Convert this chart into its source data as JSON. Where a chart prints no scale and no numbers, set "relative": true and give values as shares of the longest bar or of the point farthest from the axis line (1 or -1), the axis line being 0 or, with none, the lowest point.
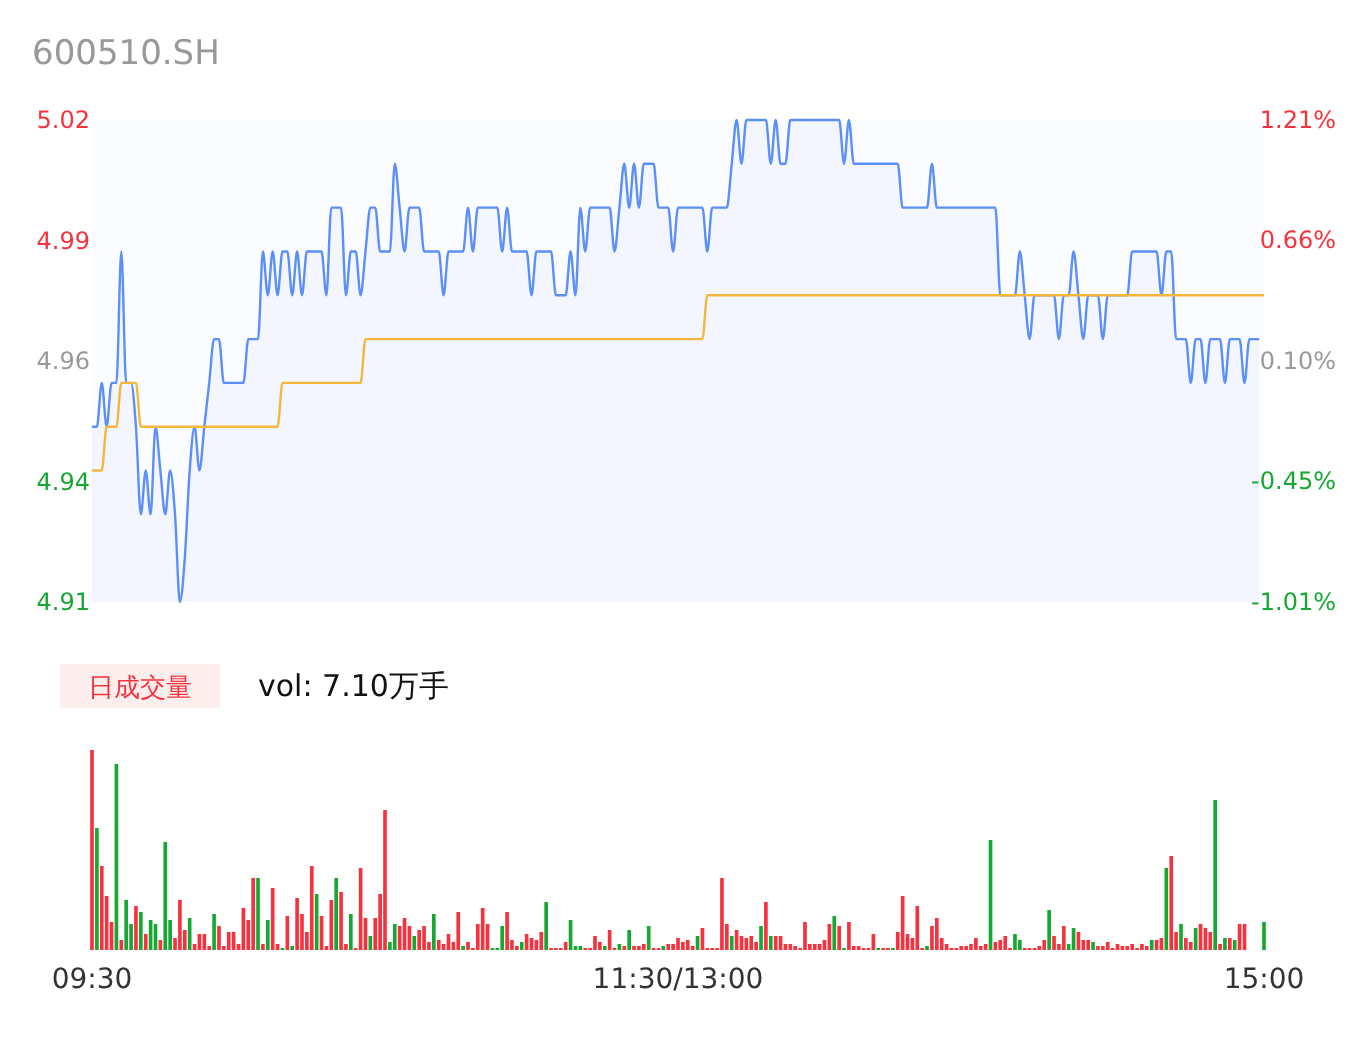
{
  "chart_data": [
    {
      "type": "line",
      "title": "600510.SH",
      "categories": [
        null,
        null,
        null,
        null,
        null,
        null,
        null,
        null,
        null,
        null,
        null,
        null,
        null,
        null,
        null,
        null,
        null,
        null,
        null,
        null,
        null,
        null,
        null,
        null,
        null,
        null,
        null,
        null,
        null,
        null,
        null,
        null,
        null,
        null,
        null,
        null,
        null,
        null,
        null,
        null,
        null,
        null,
        null,
        null,
        null,
        null,
        null,
        null,
        null,
        null,
        null,
        null,
        null,
        null,
        null,
        null,
        null,
        null,
        null,
        null,
        null,
        null,
        null,
        null,
        null,
        null,
        null,
        null,
        null,
        null,
        null,
        null,
        null,
        null,
        null,
        null,
        null,
        null,
        null,
        null,
        null,
        null,
        null,
        null,
        null,
        null,
        null,
        null,
        null,
        null,
        null,
        null,
        null,
        null,
        null,
        null,
        null,
        null,
        null,
        null,
        null,
        null,
        null,
        null,
        null,
        null,
        null,
        null,
        null,
        null,
        null,
        null,
        null,
        null,
        null,
        null,
        null,
        null,
        null,
        null,
        null,
        null,
        null,
        null,
        null,
        null,
        null,
        null,
        null,
        null,
        null,
        null,
        null,
        null,
        null,
        null,
        null,
        null,
        null,
        null,
        null,
        null,
        null,
        null,
        null,
        null,
        null,
        null,
        null,
        null,
        null,
        null,
        null,
        null,
        null,
        null,
        null,
        null,
        null,
        null,
        null,
        null,
        null,
        null,
        null,
        null,
        null,
        null,
        null,
        null,
        null,
        null,
        null,
        null,
        null,
        null,
        null,
        null,
        null,
        null,
        null,
        null,
        null,
        null,
        null,
        null,
        null,
        null,
        null,
        null,
        null,
        null,
        null,
        null,
        null,
        null,
        null,
        null,
        null,
        null,
        null,
        null,
        null,
        null,
        null,
        null,
        null,
        null,
        null,
        null,
        null,
        null,
        null,
        null,
        null,
        null,
        null,
        null,
        null,
        null,
        null,
        null,
        null,
        null,
        null,
        null,
        null,
        null,
        null,
        null,
        null,
        null,
        null,
        null,
        null,
        null,
        null,
        null,
        null,
        null,
        null
      ],
      "ylim": [
        4.91,
        5.02
      ],
      "yticks": [
        4.91,
        {
          "value": 4.9375,
          "label": "4.94"
        },
        {
          "value": 4.965,
          "label": "4.96"
        },
        {
          "value": 4.9925,
          "label": "4.99"
        },
        5.02
      ],
      "y2lim": [
        -1.01,
        1.21
      ],
      "y2ticks": [
        {
          "value": -1.01,
          "label": "-1.01%"
        },
        {
          "value": -0.45,
          "label": "-0.45%"
        },
        {
          "value": 0.1,
          "label": "0.10%"
        },
        {
          "value": 0.66,
          "label": "0.66%"
        },
        {
          "value": 1.21,
          "label": "1.21%"
        }
      ],
      "tick_labels": "y",
      "series": [
        {
          "type": "area",
          "color": "#5b8ff9",
          "values": [
            4.95,
            4.95,
            4.96,
            4.95,
            4.96,
            4.96,
            4.99,
            4.96,
            4.96,
            4.95,
            4.93,
            4.94,
            4.93,
            4.95,
            4.94,
            4.93,
            4.94,
            4.93,
            4.91,
            4.92,
            4.94,
            4.95,
            4.94,
            4.95,
            4.96,
            4.97,
            4.97,
            4.96,
            4.96,
            4.96,
            4.96,
            4.96,
            4.97,
            4.97,
            4.97,
            4.99,
            4.98,
            4.99,
            4.98,
            4.99,
            4.99,
            4.98,
            4.99,
            4.98,
            4.99,
            4.99,
            4.99,
            4.99,
            4.98,
            5.0,
            5.0,
            5.0,
            4.98,
            4.99,
            4.99,
            4.98,
            4.99,
            5.0,
            5.0,
            4.99,
            4.99,
            4.99,
            5.01,
            5.0,
            4.99,
            5.0,
            5.0,
            5.0,
            4.99,
            4.99,
            4.99,
            4.99,
            4.98,
            4.99,
            4.99,
            4.99,
            4.99,
            5.0,
            4.99,
            5.0,
            5.0,
            5.0,
            5.0,
            5.0,
            4.99,
            5.0,
            4.99,
            4.99,
            4.99,
            4.99,
            4.98,
            4.99,
            4.99,
            4.99,
            4.99,
            4.98,
            4.98,
            4.98,
            4.99,
            4.98,
            5.0,
            4.99,
            5.0,
            5.0,
            5.0,
            5.0,
            5.0,
            4.99,
            5.0,
            5.01,
            5.0,
            5.01,
            5.0,
            5.01,
            5.01,
            5.01,
            5.0,
            5.0,
            5.0,
            4.99,
            5.0,
            5.0,
            5.0,
            5.0,
            5.0,
            5.0,
            4.99,
            5.0,
            5.0,
            5.0,
            5.0,
            5.01,
            5.02,
            5.01,
            5.02,
            5.02,
            5.02,
            5.02,
            5.02,
            5.01,
            5.02,
            5.01,
            5.01,
            5.02,
            5.02,
            5.02,
            5.02,
            5.02,
            5.02,
            5.02,
            5.02,
            5.02,
            5.02,
            5.02,
            5.01,
            5.02,
            5.01,
            5.01,
            5.01,
            5.01,
            5.01,
            5.01,
            5.01,
            5.01,
            5.01,
            5.01,
            5.0,
            5.0,
            5.0,
            5.0,
            5.0,
            5.0,
            5.01,
            5.0,
            5.0,
            5.0,
            5.0,
            5.0,
            5.0,
            5.0,
            5.0,
            5.0,
            5.0,
            5.0,
            5.0,
            5.0,
            4.98,
            4.98,
            4.98,
            4.98,
            4.99,
            4.98,
            4.97,
            4.98,
            4.98,
            4.98,
            4.98,
            4.98,
            4.97,
            4.98,
            4.98,
            4.99,
            4.98,
            4.97,
            4.98,
            4.98,
            4.98,
            4.97,
            4.98,
            4.98,
            4.98,
            4.98,
            4.98,
            4.99,
            4.99,
            4.99,
            4.99,
            4.99,
            4.99,
            4.98,
            4.99,
            4.99,
            4.97,
            4.97,
            4.97,
            4.96,
            4.97,
            4.97,
            4.96,
            4.97,
            4.97,
            4.97,
            4.96,
            4.97,
            4.97,
            4.97,
            4.96,
            4.97,
            4.97,
            4.97,
            null
          ]
        },
        {
          "type": "line",
          "color": "#f5b73b",
          "values": [
            4.94,
            4.94,
            4.94,
            4.95,
            4.95,
            4.95,
            4.96,
            4.96,
            4.96,
            4.96,
            4.95,
            4.95,
            4.95,
            4.95,
            4.95,
            4.95,
            4.95,
            4.95,
            4.95,
            4.95,
            4.95,
            4.95,
            4.95,
            4.95,
            4.95,
            4.95,
            4.95,
            4.95,
            4.95,
            4.95,
            4.95,
            4.95,
            4.95,
            4.95,
            4.95,
            4.95,
            4.95,
            4.95,
            4.95,
            4.96,
            4.96,
            4.96,
            4.96,
            4.96,
            4.96,
            4.96,
            4.96,
            4.96,
            4.96,
            4.96,
            4.96,
            4.96,
            4.96,
            4.96,
            4.96,
            4.96,
            4.97,
            4.97,
            4.97,
            4.97,
            4.97,
            4.97,
            4.97,
            4.97,
            4.97,
            4.97,
            4.97,
            4.97,
            4.97,
            4.97,
            4.97,
            4.97,
            4.97,
            4.97,
            4.97,
            4.97,
            4.97,
            4.97,
            4.97,
            4.97,
            4.97,
            4.97,
            4.97,
            4.97,
            4.97,
            4.97,
            4.97,
            4.97,
            4.97,
            4.97,
            4.97,
            4.97,
            4.97,
            4.97,
            4.97,
            4.97,
            4.97,
            4.97,
            4.97,
            4.97,
            4.97,
            4.97,
            4.97,
            4.97,
            4.97,
            4.97,
            4.97,
            4.97,
            4.97,
            4.97,
            4.97,
            4.97,
            4.97,
            4.97,
            4.97,
            4.97,
            4.97,
            4.97,
            4.97,
            4.97,
            4.97,
            4.97,
            4.97,
            4.97,
            4.97,
            4.97,
            4.98,
            4.98,
            4.98,
            4.98,
            4.98,
            4.98,
            4.98,
            4.98,
            4.98,
            4.98,
            4.98,
            4.98,
            4.98,
            4.98,
            4.98,
            4.98,
            4.98,
            4.98,
            4.98,
            4.98,
            4.98,
            4.98,
            4.98,
            4.98,
            4.98,
            4.98,
            4.98,
            4.98,
            4.98,
            4.98,
            4.98,
            4.98,
            4.98,
            4.98,
            4.98,
            4.98,
            4.98,
            4.98,
            4.98,
            4.98,
            4.98,
            4.98,
            4.98,
            4.98,
            4.98,
            4.98,
            4.98,
            4.98,
            4.98,
            4.98,
            4.98,
            4.98,
            4.98,
            4.98,
            4.98,
            4.98,
            4.98,
            4.98,
            4.98,
            4.98,
            4.98,
            4.98,
            4.98,
            4.98,
            4.98,
            4.98,
            4.98,
            4.98,
            4.98,
            4.98,
            4.98,
            4.98,
            4.98,
            4.98,
            4.98,
            4.98,
            4.98,
            4.98,
            4.98,
            4.98,
            4.98,
            4.98,
            4.98,
            4.98,
            4.98,
            4.98,
            4.98,
            4.98,
            4.98,
            4.98,
            4.98,
            4.98,
            4.98,
            4.98,
            4.98,
            4.98,
            4.98,
            4.98,
            4.98,
            4.98,
            4.98,
            4.98,
            4.98,
            4.98,
            4.98,
            4.98,
            4.98,
            4.98,
            4.98,
            4.98,
            4.98,
            4.98,
            4.98,
            4.98,
            4.98
          ]
        }
      ]
    },
    {
      "type": "bar",
      "title": "日成交量",
      "subtitle": "vol: 7.10万手",
      "relative": true,
      "tick_labels": "x",
      "categories": [
        "09:30",
        null,
        null,
        null,
        null,
        null,
        null,
        null,
        null,
        null,
        null,
        null,
        null,
        null,
        null,
        null,
        null,
        null,
        null,
        null,
        null,
        null,
        null,
        null,
        null,
        null,
        null,
        null,
        null,
        null,
        null,
        null,
        null,
        null,
        null,
        null,
        null,
        null,
        null,
        null,
        null,
        null,
        null,
        null,
        null,
        null,
        null,
        null,
        null,
        null,
        null,
        null,
        null,
        null,
        null,
        null,
        null,
        null,
        null,
        null,
        null,
        null,
        null,
        null,
        null,
        null,
        null,
        null,
        null,
        null,
        null,
        null,
        null,
        null,
        null,
        null,
        null,
        null,
        null,
        null,
        null,
        null,
        null,
        null,
        null,
        null,
        null,
        null,
        null,
        null,
        null,
        null,
        null,
        null,
        null,
        null,
        null,
        null,
        null,
        null,
        null,
        null,
        null,
        null,
        null,
        null,
        null,
        null,
        null,
        null,
        null,
        null,
        null,
        null,
        null,
        null,
        null,
        null,
        null,
        null,
        "11:30/13:00",
        null,
        null,
        null,
        null,
        null,
        null,
        null,
        null,
        null,
        null,
        null,
        null,
        null,
        null,
        null,
        null,
        null,
        null,
        null,
        null,
        null,
        null,
        null,
        null,
        null,
        null,
        null,
        null,
        null,
        null,
        null,
        null,
        null,
        null,
        null,
        null,
        null,
        null,
        null,
        null,
        null,
        null,
        null,
        null,
        null,
        null,
        null,
        null,
        null,
        null,
        null,
        null,
        null,
        null,
        null,
        null,
        null,
        null,
        null,
        null,
        null,
        null,
        null,
        null,
        null,
        null,
        null,
        null,
        null,
        null,
        null,
        null,
        null,
        null,
        null,
        null,
        null,
        null,
        null,
        null,
        null,
        null,
        null,
        null,
        null,
        null,
        null,
        null,
        null,
        null,
        null,
        null,
        null,
        null,
        null,
        null,
        null,
        null,
        null,
        null,
        null,
        null,
        null,
        null,
        null,
        null,
        null,
        null,
        null,
        null,
        null,
        null,
        null,
        null,
        null,
        null,
        null,
        null,
        null,
        "15:00"
      ],
      "values": [
        1,
        0.61,
        0.42,
        0.27,
        0.14,
        0.93,
        0.05,
        0.25,
        0.13,
        0.22,
        0.19,
        0.08,
        0.15,
        0.13,
        0.05,
        0.54,
        0.15,
        0.06,
        0.25,
        0.1,
        0.16,
        0.03,
        0.08,
        0.08,
        0.02,
        0.18,
        0.12,
        0.02,
        0.09,
        0.09,
        0.03,
        0.21,
        0.15,
        0.36,
        0.36,
        0.03,
        0.15,
        0.31,
        0.03,
        0.01,
        0.17,
        0.02,
        0.26,
        0.18,
        0.09,
        0.42,
        0.28,
        0.17,
        0.02,
        0.25,
        0.36,
        0.29,
        0.03,
        0.18,
        0.01,
        0.41,
        0.16,
        0.07,
        0.16,
        0.28,
        0.7,
        0.04,
        0.13,
        0.12,
        0.16,
        0.12,
        0.07,
        0.1,
        0.12,
        0.04,
        0.18,
        0.05,
        0.03,
        0.08,
        0.04,
        0.19,
        0.02,
        0.04,
        0.01,
        0.13,
        0.21,
        0.13,
        0.01,
        0.01,
        0.12,
        0.19,
        0.05,
        0.02,
        0.04,
        0.08,
        0.06,
        0.05,
        0.09,
        0.24,
        0.01,
        0.01,
        0.01,
        0.04,
        0.15,
        0.02,
        0.02,
        0.01,
        0.01,
        0.07,
        0.04,
        0.02,
        0.1,
        0.01,
        0.03,
        0.02,
        0.1,
        0.02,
        0.02,
        0.03,
        0.12,
        0.01,
        0.01,
        0.02,
        0.03,
        0.03,
        0.06,
        0.04,
        0.05,
        0.02,
        0.07,
        0.11,
        0.01,
        0.01,
        0.01,
        0.36,
        0.13,
        0.07,
        0.1,
        0.07,
        0.06,
        0.07,
        0.04,
        0.12,
        0.24,
        0.07,
        0.07,
        0.07,
        0.03,
        0.03,
        0.02,
        0.01,
        0.14,
        0.03,
        0.03,
        0.03,
        0.05,
        0.13,
        0.17,
        0.12,
        0.01,
        0.14,
        0.02,
        0.02,
        0.01,
        0.01,
        0.08,
        0.01,
        0.01,
        0.01,
        0.01,
        0.09,
        0.27,
        0.08,
        0.06,
        0.22,
        0.01,
        0.02,
        0.12,
        0.16,
        0.06,
        0.03,
        0.01,
        0.01,
        0.02,
        0.02,
        0.03,
        0.06,
        0.02,
        0.03,
        0.55,
        0.04,
        0.05,
        0.07,
        0.01,
        0.08,
        0.05,
        0.01,
        0.01,
        0.01,
        0.02,
        0.05,
        0.2,
        0.07,
        0.03,
        0.12,
        0.03,
        0.11,
        0.09,
        0.05,
        0.05,
        0.04,
        0.02,
        0.02,
        0.04,
        0.01,
        0.03,
        0.02,
        0.02,
        0.03,
        0.01,
        0.03,
        0.02,
        0.05,
        0.05,
        0.06,
        0.41,
        0.47,
        0.09,
        0.13,
        0.06,
        0.04,
        0.11,
        0.13,
        0.11,
        0.09,
        0.75,
        0.03,
        0.06,
        0.06,
        0.05,
        0.13,
        0.13,
        null,
        null,
        null,
        0.14
      ],
      "colors": [
        "#f5333f",
        "#16a832",
        "#f5333f",
        "#f5333f",
        "#f5333f",
        "#16a832",
        "#f5333f",
        "#16a832",
        "#16a832",
        "#f5333f",
        "#16a832",
        "#f5333f",
        "#16a832",
        "#16a832",
        "#f5333f",
        "#16a832",
        "#16a832",
        "#f5333f",
        "#f5333f",
        "#f5333f",
        "#16a832",
        "#f5333f",
        "#f5333f",
        "#f5333f",
        "#f5333f",
        "#16a832",
        "#f5333f",
        "#f5333f",
        "#f5333f",
        "#f5333f",
        "#f5333f",
        "#f5333f",
        "#f5333f",
        "#f5333f",
        "#16a832",
        "#f5333f",
        "#16a832",
        "#f5333f",
        "#f5333f",
        "#16a832",
        "#f5333f",
        "#16a832",
        "#f5333f",
        "#f5333f",
        "#f5333f",
        "#f5333f",
        "#16a832",
        "#f5333f",
        "#f5333f",
        "#f5333f",
        "#16a832",
        "#f5333f",
        "#f5333f",
        "#16a832",
        "#f5333f",
        "#f5333f",
        "#f5333f",
        "#16a832",
        "#f5333f",
        "#f5333f",
        "#f5333f",
        "#16a832",
        "#16a832",
        "#f5333f",
        "#f5333f",
        "#f5333f",
        "#16a832",
        "#f5333f",
        "#f5333f",
        "#f5333f",
        "#16a832",
        "#f5333f",
        "#f5333f",
        "#f5333f",
        "#f5333f",
        "#f5333f",
        "#16a832",
        "#f5333f",
        "#f5333f",
        "#f5333f",
        "#f5333f",
        "#f5333f",
        "#16a832",
        "#16a832",
        "#16a832",
        "#f5333f",
        "#f5333f",
        "#f5333f",
        "#16a832",
        "#f5333f",
        "#f5333f",
        "#f5333f",
        "#f5333f",
        "#16a832",
        "#f5333f",
        "#f5333f",
        "#f5333f",
        "#f5333f",
        "#16a832",
        "#16a832",
        "#16a832",
        "#f5333f",
        "#f5333f",
        "#f5333f",
        "#f5333f",
        "#16a832",
        "#f5333f",
        "#f5333f",
        "#16a832",
        "#f5333f",
        "#16a832",
        "#f5333f",
        "#f5333f",
        "#f5333f",
        "#16a832",
        "#f5333f",
        "#f5333f",
        "#16a832",
        "#f5333f",
        "#f5333f",
        "#f5333f",
        "#f5333f",
        "#f5333f",
        "#f5333f",
        "#16a832",
        "#f5333f",
        "#f5333f",
        "#f5333f",
        "#f5333f",
        "#f5333f",
        "#f5333f",
        "#16a832",
        "#f5333f",
        "#f5333f",
        "#f5333f",
        "#f5333f",
        "#f5333f",
        "#16a832",
        "#f5333f",
        "#16a832",
        "#f5333f",
        "#f5333f",
        "#f5333f",
        "#f5333f",
        "#f5333f",
        "#f5333f",
        "#f5333f",
        "#f5333f",
        "#f5333f",
        "#f5333f",
        "#f5333f",
        "#f5333f",
        "#16a832",
        "#f5333f",
        "#16a832",
        "#f5333f",
        "#f5333f",
        "#f5333f",
        "#f5333f",
        "#f5333f",
        "#f5333f",
        "#16a832",
        "#f5333f",
        "#f5333f",
        "#16a832",
        "#f5333f",
        "#f5333f",
        "#f5333f",
        "#f5333f",
        "#f5333f",
        "#f5333f",
        "#16a832",
        "#f5333f",
        "#f5333f",
        "#f5333f",
        "#f5333f",
        "#f5333f",
        "#f5333f",
        "#f5333f",
        "#f5333f",
        "#f5333f",
        "#f5333f",
        "#f5333f",
        "#f5333f",
        "#16a832",
        "#f5333f",
        "#f5333f",
        "#f5333f",
        "#f5333f",
        "#16a832",
        "#16a832",
        "#f5333f",
        "#f5333f",
        "#f5333f",
        "#f5333f",
        "#f5333f",
        "#16a832",
        "#f5333f",
        "#f5333f",
        "#f5333f",
        "#16a832",
        "#16a832",
        "#f5333f",
        "#f5333f",
        "#f5333f",
        "#16a832",
        "#f5333f",
        "#f5333f",
        "#f5333f",
        "#f5333f",
        "#f5333f",
        "#f5333f",
        "#f5333f",
        "#f5333f",
        "#f5333f",
        "#f5333f",
        "#f5333f",
        "#16a832",
        "#f5333f",
        "#f5333f",
        "#16a832",
        "#f5333f",
        "#f5333f",
        "#16a832",
        "#f5333f",
        "#f5333f",
        "#16a832",
        "#f5333f",
        "#f5333f",
        "#f5333f",
        "#16a832",
        "#f5333f",
        "#16a832",
        "#f5333f",
        "#16a832",
        "#f5333f",
        "#f5333f",
        null,
        null,
        null,
        "#16a832"
      ]
    }
  ]
}
